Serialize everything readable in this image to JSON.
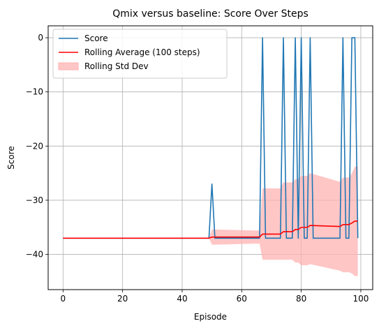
{
  "chart_data": {
    "type": "line",
    "title": "Qmix versus baseline: Score Over Steps",
    "xlabel": "Episode",
    "ylabel": "Score",
    "xlim": [
      -5,
      104
    ],
    "ylim": [
      -46.5,
      2.2
    ],
    "xticks": [
      0,
      20,
      40,
      60,
      80,
      100
    ],
    "yticks": [
      0,
      -10,
      -20,
      -30,
      -40
    ],
    "grid": true,
    "legend_position": "top-left",
    "series": [
      {
        "name": "Score",
        "kind": "line",
        "color": "#1f77b4",
        "x": [
          0,
          1,
          2,
          3,
          4,
          5,
          6,
          7,
          8,
          9,
          10,
          11,
          12,
          13,
          14,
          15,
          16,
          17,
          18,
          19,
          20,
          21,
          22,
          23,
          24,
          25,
          26,
          27,
          28,
          29,
          30,
          31,
          32,
          33,
          34,
          35,
          36,
          37,
          38,
          39,
          40,
          41,
          42,
          43,
          44,
          45,
          46,
          47,
          48,
          49,
          50,
          51,
          52,
          53,
          54,
          55,
          56,
          57,
          58,
          59,
          60,
          61,
          62,
          63,
          64,
          65,
          66,
          67,
          68,
          69,
          70,
          71,
          72,
          73,
          74,
          75,
          76,
          77,
          78,
          79,
          80,
          81,
          82,
          83,
          84,
          85,
          86,
          87,
          88,
          89,
          90,
          91,
          92,
          93,
          94,
          95,
          96,
          97,
          98,
          99
        ],
        "y": [
          -37,
          -37,
          -37,
          -37,
          -37,
          -37,
          -37,
          -37,
          -37,
          -37,
          -37,
          -37,
          -37,
          -37,
          -37,
          -37,
          -37,
          -37,
          -37,
          -37,
          -37,
          -37,
          -37,
          -37,
          -37,
          -37,
          -37,
          -37,
          -37,
          -37,
          -37,
          -37,
          -37,
          -37,
          -37,
          -37,
          -37,
          -37,
          -37,
          -37,
          -37,
          -37,
          -37,
          -37,
          -37,
          -37,
          -37,
          -37,
          -37,
          -37,
          -27,
          -37,
          -37,
          -37,
          -37,
          -37,
          -37,
          -37,
          -37,
          -37,
          -37,
          -37,
          -37,
          -37,
          -37,
          -37,
          -37,
          0,
          -37,
          -37,
          -37,
          -37,
          -37,
          -37,
          0,
          -37,
          -37,
          -37,
          0,
          -37,
          0,
          -37,
          -37,
          0,
          -37,
          -37,
          -37,
          -37,
          -37,
          -37,
          -37,
          -37,
          -37,
          -37,
          0,
          -37,
          -37,
          0,
          0,
          -37
        ]
      },
      {
        "name": "Rolling Average (100 steps)",
        "kind": "line",
        "color": "#ff0000",
        "x": [
          0,
          49,
          50,
          51,
          66,
          67,
          73,
          74,
          77,
          78,
          79,
          80,
          82,
          83,
          93,
          94,
          96,
          97,
          98,
          99
        ],
        "y": [
          -37,
          -37,
          -36.8,
          -36.8,
          -36.8,
          -36.25,
          -36.25,
          -35.8,
          -35.8,
          -35.4,
          -35.4,
          -35.0,
          -35.0,
          -34.65,
          -34.85,
          -34.5,
          -34.5,
          -34.2,
          -33.85,
          -33.85
        ]
      },
      {
        "name": "Rolling Std Dev",
        "kind": "band",
        "color": "#ffb3b3",
        "x": [
          49,
          50,
          51,
          66,
          67,
          73,
          74,
          77,
          78,
          79,
          80,
          82,
          83,
          93,
          94,
          96,
          97,
          98,
          99
        ],
        "upper": [
          -37,
          -35.4,
          -35.4,
          -35.6,
          -27.8,
          -27.8,
          -26.7,
          -26.7,
          -26.1,
          -26.1,
          -25.5,
          -25.5,
          -25.0,
          -26.6,
          -25.8,
          -25.8,
          -25.0,
          -23.8,
          -23.8
        ],
        "lower": [
          -37,
          -38.2,
          -38.2,
          -38.0,
          -41.0,
          -41.0,
          -41.0,
          -41.0,
          -41.5,
          -41.5,
          -42.0,
          -42.0,
          -41.8,
          -43.0,
          -43.3,
          -43.3,
          -43.5,
          -44.0,
          -44.0
        ]
      }
    ]
  }
}
